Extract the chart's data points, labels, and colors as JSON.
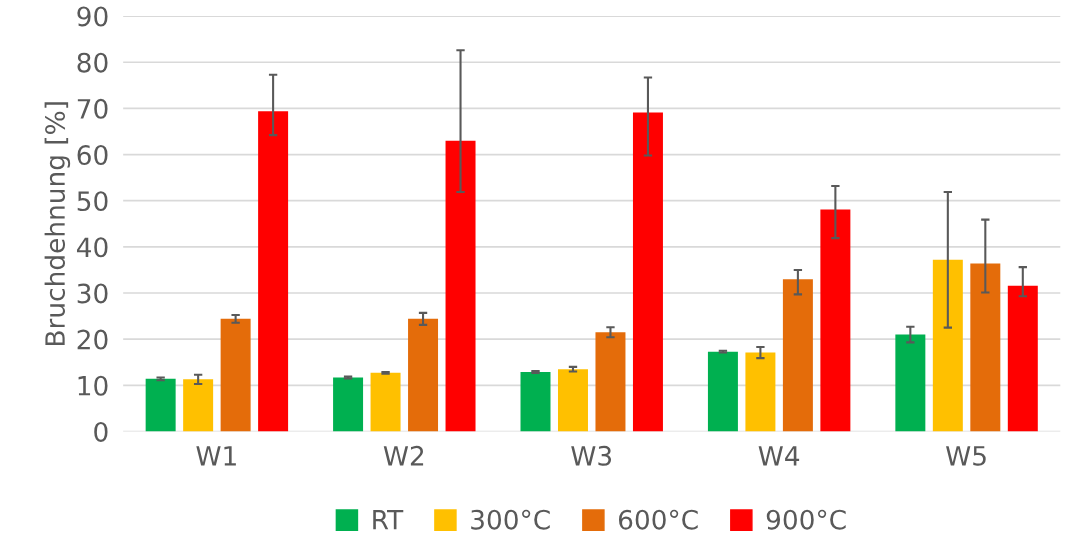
{
  "chart_data": {
    "type": "bar",
    "ylabel": "Bruchdehnung [%]",
    "categories": [
      "W1",
      "W2",
      "W3",
      "W4",
      "W5"
    ],
    "series": [
      {
        "name": "RT",
        "color": "#00b050",
        "values": [
          11.4,
          11.7,
          12.9,
          17.3,
          21.0
        ],
        "errors": [
          0.3,
          0.2,
          0.2,
          0.2,
          1.7
        ]
      },
      {
        "name": "300°C",
        "color": "#ffc000",
        "values": [
          11.3,
          12.7,
          13.5,
          17.1,
          37.2
        ],
        "errors": [
          1.0,
          0.2,
          0.5,
          1.2,
          14.7
        ]
      },
      {
        "name": "600°C",
        "color": "#e46c0a",
        "values": [
          24.4,
          24.4,
          21.5,
          33.0,
          36.4
        ],
        "errors": [
          0.85,
          1.3,
          1.1,
          [
            29.7,
            35.0
          ],
          [
            30.1,
            45.9
          ]
        ]
      },
      {
        "name": "900°C",
        "color": "#ff0000",
        "values": [
          69.4,
          63.0,
          69.1,
          48.1,
          31.6
        ],
        "errors": [
          [
            64.2,
            77.3
          ],
          [
            51.9,
            82.6
          ],
          [
            59.8,
            76.7
          ],
          [
            41.9,
            53.2
          ],
          [
            29.3,
            35.6
          ]
        ]
      }
    ],
    "ylim": [
      0,
      90
    ],
    "yticks": [
      0,
      10,
      20,
      30,
      40,
      50,
      60,
      70,
      80,
      90
    ],
    "grid": "y",
    "legend": "bottom"
  }
}
